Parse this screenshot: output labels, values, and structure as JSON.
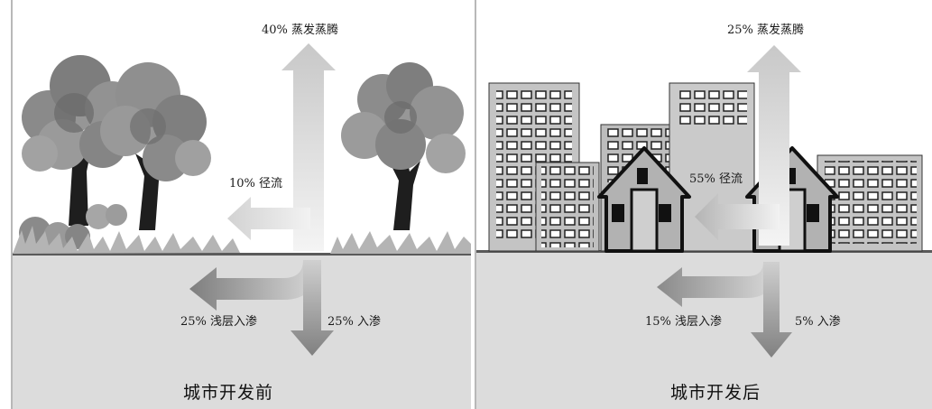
{
  "panels": [
    {
      "caption": "城市开发前",
      "labels": {
        "evaporation": "40% 蒸发蒸腾",
        "runoff": "10% 径流",
        "shallow": "25% 浅层入渗",
        "deep": "25% 入渗"
      }
    },
    {
      "caption": "城市开发后",
      "labels": {
        "evaporation": "25% 蒸发蒸腾",
        "runoff": "55% 径流",
        "shallow": "15% 浅层入渗",
        "deep": "5% 入渗"
      }
    }
  ],
  "colors": {
    "sky": "#ffffff",
    "ground": "#dcdcdc",
    "ground_line": "#5a5a5a",
    "arrow_light": "#e6e6e6",
    "arrow_dark": "#9a9a9a",
    "foliage": "#888888",
    "building": "#c4c4c4"
  }
}
